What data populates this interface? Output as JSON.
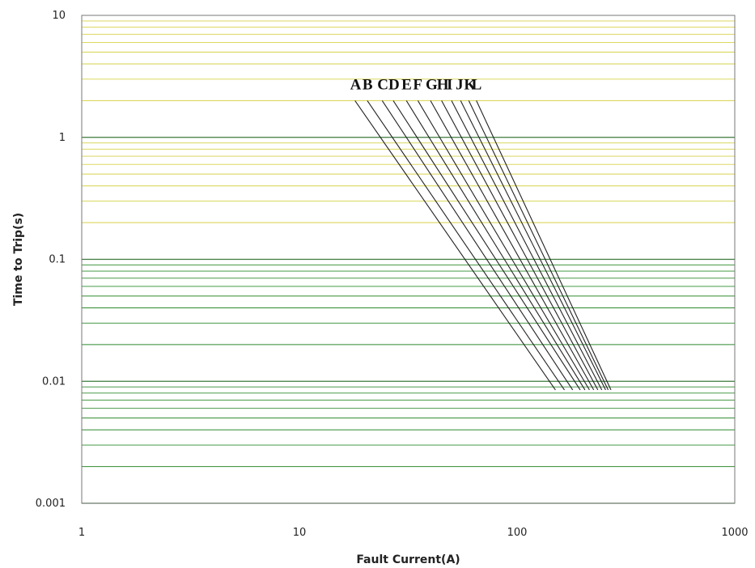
{
  "chart_data": {
    "type": "line",
    "xlabel": "Fault Current(A)",
    "ylabel": "Time to Trip(s)",
    "x_scale": "log",
    "y_scale": "log",
    "xlim": [
      1,
      1000
    ],
    "ylim": [
      0.001,
      10
    ],
    "x_ticks": [
      "1",
      "10",
      "100",
      "1000"
    ],
    "y_ticks": [
      "0.001",
      "0.01",
      "0.1",
      "1",
      "10"
    ],
    "grid": true,
    "colors": {
      "vgrid_top": "#f2d530",
      "vgrid_bottom": "#c81e3c",
      "hgrid_major": "#3c7a3c",
      "hgrid_minor_low": "#2e8b2e",
      "hgrid_minor_high": "#d6d24a",
      "curve": "#222222"
    },
    "series": [
      {
        "name": "A",
        "x": [
          18,
          150
        ],
        "y": [
          2.0,
          0.0085
        ]
      },
      {
        "name": "B",
        "x": [
          20.5,
          165
        ],
        "y": [
          2.0,
          0.0085
        ]
      },
      {
        "name": "C",
        "x": [
          24,
          180
        ],
        "y": [
          2.0,
          0.0085
        ]
      },
      {
        "name": "D",
        "x": [
          27,
          195
        ],
        "y": [
          2.0,
          0.0085
        ]
      },
      {
        "name": "E",
        "x": [
          31,
          205
        ],
        "y": [
          2.0,
          0.0085
        ]
      },
      {
        "name": "F",
        "x": [
          35,
          215
        ],
        "y": [
          2.0,
          0.0085
        ]
      },
      {
        "name": "G",
        "x": [
          40,
          225
        ],
        "y": [
          2.0,
          0.0085
        ]
      },
      {
        "name": "H",
        "x": [
          45,
          235
        ],
        "y": [
          2.0,
          0.0085
        ]
      },
      {
        "name": "I",
        "x": [
          50,
          245
        ],
        "y": [
          2.0,
          0.0085
        ]
      },
      {
        "name": "J",
        "x": [
          55,
          255
        ],
        "y": [
          2.0,
          0.0085
        ]
      },
      {
        "name": "K",
        "x": [
          60,
          262
        ],
        "y": [
          2.0,
          0.0085
        ]
      },
      {
        "name": "L",
        "x": [
          65,
          270
        ],
        "y": [
          2.0,
          0.0085
        ]
      }
    ]
  }
}
